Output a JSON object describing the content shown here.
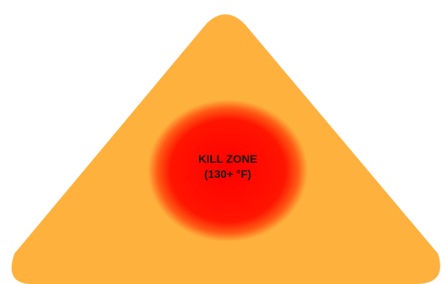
{
  "diagram": {
    "kill_zone": {
      "title": "KILL ZONE",
      "temperature": "(130+ °F)"
    },
    "colors": {
      "outer_zone": "#ffb13d",
      "kill_zone_core": "#ff0000",
      "kill_zone_glow": "#ff6a1a"
    }
  }
}
